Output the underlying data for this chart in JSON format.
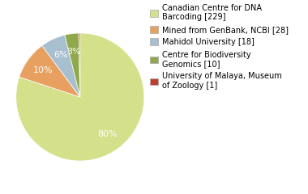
{
  "labels": [
    "Canadian Centre for DNA\nBarcoding [229]",
    "Mined from GenBank, NCBI [28]",
    "Mahidol University [18]",
    "Centre for Biodiversity\nGenomics [10]",
    "University of Malaya, Museum\nof Zoology [1]"
  ],
  "values": [
    229,
    28,
    18,
    10,
    1
  ],
  "colors": [
    "#d4e08a",
    "#e8a060",
    "#a8bfd0",
    "#90a84c",
    "#c04030"
  ],
  "background_color": "#ffffff",
  "pct_color": "white",
  "fontsize_legend": 7.0,
  "fontsize_pct": 8.0,
  "startangle": 90
}
